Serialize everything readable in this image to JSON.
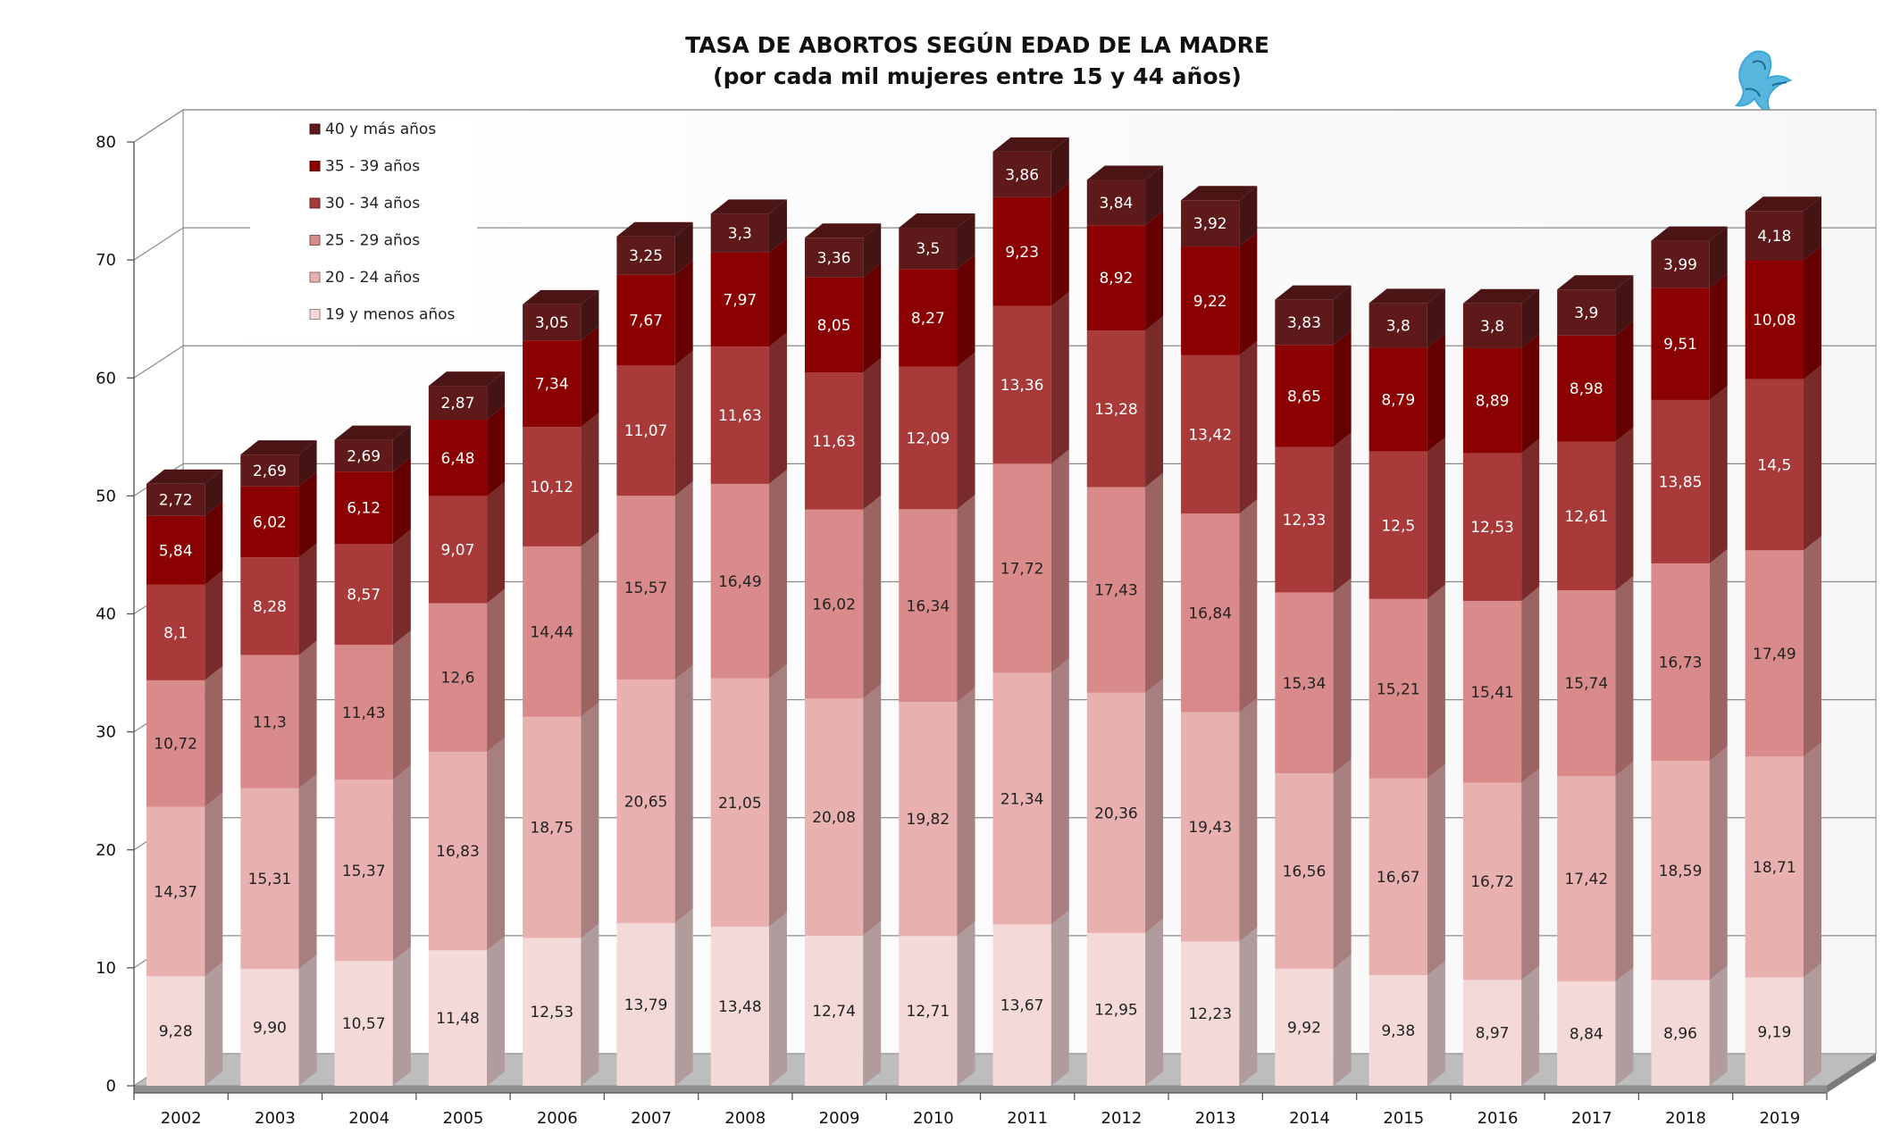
{
  "chart_data": {
    "type": "bar",
    "stacked": true,
    "title": "TASA DE ABORTOS SEGÚN EDAD DE LA MADRE",
    "subtitle": "(por cada mil mujeres entre 15 y 44 años)",
    "ylim": [
      0,
      80
    ],
    "yticks": [
      "0",
      "10",
      "20",
      "30",
      "40",
      "50",
      "60",
      "70",
      "80"
    ],
    "grid": true,
    "legend_position": "top-left",
    "categories": [
      "2002",
      "2003",
      "2004",
      "2005",
      "2006",
      "2007",
      "2008",
      "2009",
      "2010",
      "2011",
      "2012",
      "2013",
      "2014",
      "2015",
      "2016",
      "2017",
      "2018",
      "2019"
    ],
    "series": [
      {
        "name": "19 y menos años",
        "color": "#f4d9d9",
        "label_color": "#222222",
        "values": [
          9.28,
          9.9,
          10.57,
          11.48,
          12.53,
          13.79,
          13.48,
          12.74,
          12.71,
          13.67,
          12.95,
          12.23,
          9.92,
          9.38,
          8.97,
          8.84,
          8.96,
          9.19
        ],
        "labels": [
          "9,28",
          "9,90",
          "10,57",
          "11,48",
          "12,53",
          "13,79",
          "13,48",
          "12,74",
          "12,71",
          "13,67",
          "12,95",
          "12,23",
          "9,92",
          "9,38",
          "8,97",
          "8,84",
          "8,96",
          "9,19"
        ]
      },
      {
        "name": "20 - 24 años",
        "color": "#e9b0b0",
        "label_color": "#222222",
        "values": [
          14.37,
          15.31,
          15.37,
          16.83,
          18.75,
          20.65,
          21.05,
          20.08,
          19.82,
          21.34,
          20.36,
          19.43,
          16.56,
          16.67,
          16.72,
          17.42,
          18.59,
          18.71
        ],
        "labels": [
          "14,37",
          "15,31",
          "15,37",
          "16,83",
          "18,75",
          "20,65",
          "21,05",
          "20,08",
          "19,82",
          "21,34",
          "20,36",
          "19,43",
          "16,56",
          "16,67",
          "16,72",
          "17,42",
          "18,59",
          "18,71"
        ]
      },
      {
        "name": "25 - 29 años",
        "color": "#d98a8a",
        "label_color": "#222222",
        "values": [
          10.72,
          11.3,
          11.43,
          12.6,
          14.44,
          15.57,
          16.49,
          16.02,
          16.34,
          17.72,
          17.43,
          16.84,
          15.34,
          15.21,
          15.41,
          15.74,
          16.73,
          17.49
        ],
        "labels": [
          "10,72",
          "11,3",
          "11,43",
          "12,6",
          "14,44",
          "15,57",
          "16,49",
          "16,02",
          "16,34",
          "17,72",
          "17,43",
          "16,84",
          "15,34",
          "15,21",
          "15,41",
          "15,74",
          "16,73",
          "17,49"
        ]
      },
      {
        "name": "30 - 34 años",
        "color": "#a83a3a",
        "label_color": "#ffffff",
        "values": [
          8.1,
          8.28,
          8.57,
          9.07,
          10.12,
          11.07,
          11.63,
          11.63,
          12.09,
          13.36,
          13.28,
          13.42,
          12.33,
          12.5,
          12.53,
          12.61,
          13.85,
          14.5
        ],
        "labels": [
          "8,1",
          "8,28",
          "8,57",
          "9,07",
          "10,12",
          "11,07",
          "11,63",
          "11,63",
          "12,09",
          "13,36",
          "13,28",
          "13,42",
          "12,33",
          "12,5",
          "12,53",
          "12,61",
          "13,85",
          "14,5"
        ]
      },
      {
        "name": "35 - 39 años",
        "color": "#8b0000",
        "label_color": "#ffffff",
        "values": [
          5.84,
          6.02,
          6.12,
          6.48,
          7.34,
          7.67,
          7.97,
          8.05,
          8.27,
          9.23,
          8.92,
          9.22,
          8.65,
          8.79,
          8.89,
          8.98,
          9.51,
          10.08
        ],
        "labels": [
          "5,84",
          "6,02",
          "6,12",
          "6,48",
          "7,34",
          "7,67",
          "7,97",
          "8,05",
          "8,27",
          "9,23",
          "8,92",
          "9,22",
          "8,65",
          "8,79",
          "8,89",
          "8,98",
          "9,51",
          "10,08"
        ]
      },
      {
        "name": "40 y más años",
        "color": "#5e1a1a",
        "label_color": "#ffffff",
        "values": [
          2.72,
          2.69,
          2.69,
          2.87,
          3.05,
          3.25,
          3.3,
          3.36,
          3.5,
          3.86,
          3.84,
          3.92,
          3.83,
          3.8,
          3.8,
          3.9,
          3.99,
          4.18
        ],
        "labels": [
          "2,72",
          "2,69",
          "2,69",
          "2,87",
          "3,05",
          "3,25",
          "3,3",
          "3,36",
          "3,5",
          "3,86",
          "3,84",
          "3,92",
          "3,83",
          "3,8",
          "3,8",
          "3,9",
          "3,99",
          "4,18"
        ]
      }
    ]
  },
  "logo": {
    "name": "griffin-logo",
    "color": "#3aa9d8"
  }
}
